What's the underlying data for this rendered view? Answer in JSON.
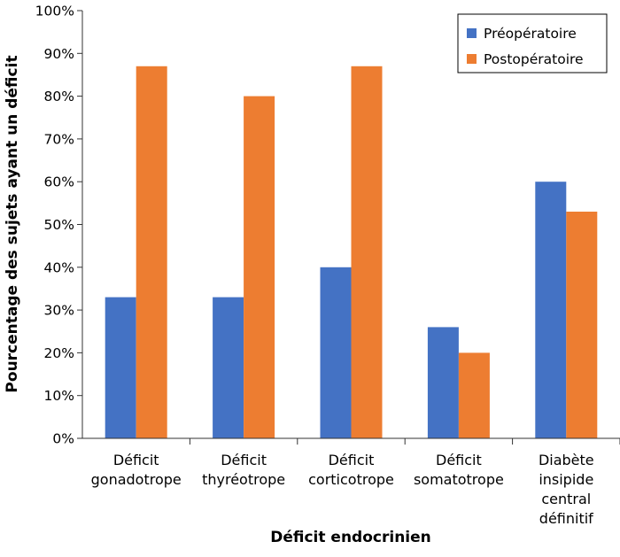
{
  "chart_data": {
    "type": "bar",
    "categories": [
      [
        "Déficit",
        "gonadotrope"
      ],
      [
        "Déficit",
        "thyréotrope"
      ],
      [
        "Déficit",
        "corticotrope"
      ],
      [
        "Déficit",
        "somatotrope"
      ],
      [
        "Diabète",
        "insipide",
        "central",
        "définitif"
      ]
    ],
    "series": [
      {
        "name": "Préopératoire",
        "color": "#4472C4",
        "values": [
          33,
          33,
          40,
          26,
          60
        ]
      },
      {
        "name": "Postopératoire",
        "color": "#ED7D31",
        "values": [
          87,
          80,
          87,
          20,
          53
        ]
      }
    ],
    "xlabel": "Déficit endocrinien",
    "ylabel": "Pourcentage des sujets ayant un déficit",
    "ylim": [
      0,
      100
    ],
    "yticks": [
      "0%",
      "10%",
      "20%",
      "30%",
      "40%",
      "50%",
      "60%",
      "70%",
      "80%",
      "90%",
      "100%"
    ],
    "grid": false,
    "legend_position": "top-right"
  }
}
